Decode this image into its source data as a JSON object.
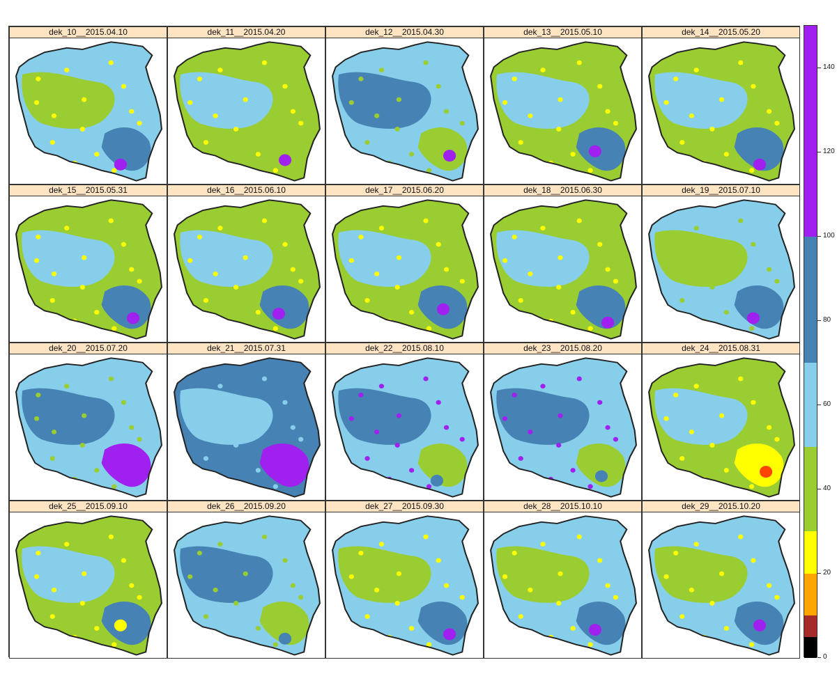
{
  "colors": {
    "strip_bg": "#ffe4c4",
    "outline": "#222222",
    "classes": [
      "#000000",
      "#a52a2a",
      "#ffa500",
      "#ffff00",
      "#9acd32",
      "#87ceeb",
      "#4682b4",
      "#a020f0"
    ]
  },
  "legend": {
    "class_breaks": [
      0,
      5,
      10,
      20,
      30,
      50,
      70,
      100,
      150
    ],
    "ticks": [
      "0",
      "20",
      "40",
      "60",
      "80",
      "100",
      "120",
      "140"
    ]
  },
  "panels": [
    {
      "title": "dek_10__2015.04.10",
      "dominant": "#87ceeb",
      "secondary": "#9acd32",
      "blotch": "#4682b4",
      "dots": "#ffff00",
      "highlight": "#a020f0"
    },
    {
      "title": "dek_11__2015.04.20",
      "dominant": "#9acd32",
      "secondary": "#87ceeb",
      "blotch": "#9acd32",
      "dots": "#ffff00",
      "highlight": "#a020f0"
    },
    {
      "title": "dek_12__2015.04.30",
      "dominant": "#87ceeb",
      "secondary": "#4682b4",
      "blotch": "#9acd32",
      "dots": "#9acd32",
      "highlight": "#a020f0"
    },
    {
      "title": "dek_13__2015.05.10",
      "dominant": "#9acd32",
      "secondary": "#87ceeb",
      "blotch": "#4682b4",
      "dots": "#ffff00",
      "highlight": "#a020f0"
    },
    {
      "title": "dek_14__2015.05.20",
      "dominant": "#9acd32",
      "secondary": "#87ceeb",
      "blotch": "#4682b4",
      "dots": "#ffff00",
      "highlight": "#a020f0"
    },
    {
      "title": "dek_15__2015.05.31",
      "dominant": "#9acd32",
      "secondary": "#87ceeb",
      "blotch": "#4682b4",
      "dots": "#ffff00",
      "highlight": "#a020f0"
    },
    {
      "title": "dek_16__2015.06.10",
      "dominant": "#9acd32",
      "secondary": "#87ceeb",
      "blotch": "#4682b4",
      "dots": "#ffff00",
      "highlight": "#a020f0"
    },
    {
      "title": "dek_17__2015.06.20",
      "dominant": "#9acd32",
      "secondary": "#87ceeb",
      "blotch": "#4682b4",
      "dots": "#ffff00",
      "highlight": "#a020f0"
    },
    {
      "title": "dek_18__2015.06.30",
      "dominant": "#9acd32",
      "secondary": "#87ceeb",
      "blotch": "#4682b4",
      "dots": "#ffff00",
      "highlight": "#a020f0"
    },
    {
      "title": "dek_19__2015.07.10",
      "dominant": "#87ceeb",
      "secondary": "#9acd32",
      "blotch": "#4682b4",
      "dots": "#9acd32",
      "highlight": "#a020f0"
    },
    {
      "title": "dek_20__2015.07.20",
      "dominant": "#87ceeb",
      "secondary": "#4682b4",
      "blotch": "#a020f0",
      "dots": "#9acd32",
      "highlight": "#a020f0"
    },
    {
      "title": "dek_21__2015.07.31",
      "dominant": "#4682b4",
      "secondary": "#87ceeb",
      "blotch": "#a020f0",
      "dots": "#87ceeb",
      "highlight": "#a020f0"
    },
    {
      "title": "dek_22__2015.08.10",
      "dominant": "#87ceeb",
      "secondary": "#4682b4",
      "blotch": "#9acd32",
      "dots": "#a020f0",
      "highlight": "#4682b4"
    },
    {
      "title": "dek_23__2015.08.20",
      "dominant": "#87ceeb",
      "secondary": "#4682b4",
      "blotch": "#9acd32",
      "dots": "#a020f0",
      "highlight": "#4682b4"
    },
    {
      "title": "dek_24__2015.08.31",
      "dominant": "#9acd32",
      "secondary": "#87ceeb",
      "blotch": "#ffff00",
      "dots": "#ffff00",
      "highlight": "#ff4500"
    },
    {
      "title": "dek_25__2015.09.10",
      "dominant": "#9acd32",
      "secondary": "#87ceeb",
      "blotch": "#4682b4",
      "dots": "#ffff00",
      "highlight": "#ffff00"
    },
    {
      "title": "dek_26__2015.09.20",
      "dominant": "#87ceeb",
      "secondary": "#4682b4",
      "blotch": "#9acd32",
      "dots": "#9acd32",
      "highlight": "#4682b4"
    },
    {
      "title": "dek_27__2015.09.30",
      "dominant": "#87ceeb",
      "secondary": "#9acd32",
      "blotch": "#4682b4",
      "dots": "#ffff00",
      "highlight": "#a020f0"
    },
    {
      "title": "dek_28__2015.10.10",
      "dominant": "#87ceeb",
      "secondary": "#9acd32",
      "blotch": "#4682b4",
      "dots": "#ffff00",
      "highlight": "#a020f0"
    },
    {
      "title": "dek_29__2015.10.20",
      "dominant": "#87ceeb",
      "secondary": "#9acd32",
      "blotch": "#4682b4",
      "dots": "#ffff00",
      "highlight": "#a020f0"
    }
  ]
}
